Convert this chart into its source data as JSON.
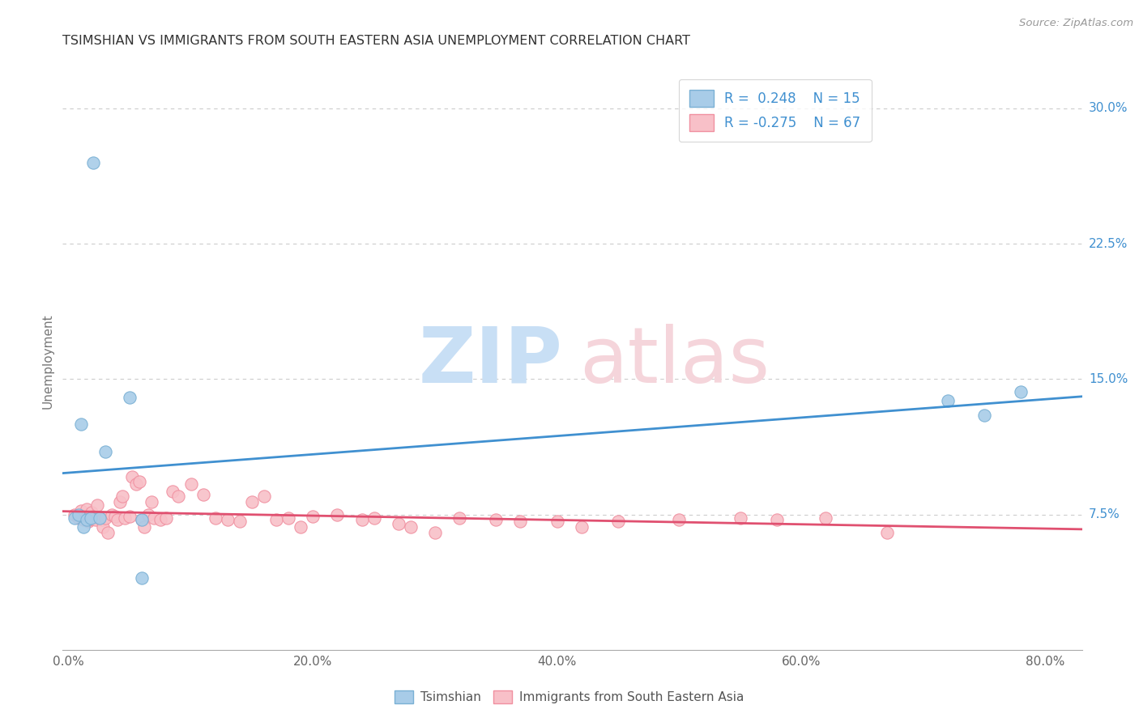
{
  "title": "TSIMSHIAN VS IMMIGRANTS FROM SOUTH EASTERN ASIA UNEMPLOYMENT CORRELATION CHART",
  "source": "Source: ZipAtlas.com",
  "xlabel_ticks": [
    "0.0%",
    "20.0%",
    "40.0%",
    "60.0%",
    "80.0%"
  ],
  "xlabel_vals": [
    0.0,
    0.2,
    0.4,
    0.6,
    0.8
  ],
  "ylabel_ticks": [
    "7.5%",
    "15.0%",
    "22.5%",
    "30.0%"
  ],
  "ylabel_vals": [
    0.075,
    0.15,
    0.225,
    0.3
  ],
  "ylim": [
    0.0,
    0.32
  ],
  "xlim": [
    -0.005,
    0.83
  ],
  "ylabel_label": "Unemployment",
  "blue_R": 0.248,
  "blue_N": 15,
  "pink_R": -0.275,
  "pink_N": 67,
  "blue_scatter_color": "#a8cce8",
  "blue_edge_color": "#7ab0d4",
  "pink_scatter_color": "#f8c0c8",
  "pink_edge_color": "#f090a0",
  "trend_blue": "#4090d0",
  "trend_pink": "#e05070",
  "legend_text_color": "#4090d0",
  "grid_color": "#cccccc",
  "bg_color": "#ffffff",
  "marker_size": 11,
  "blue_x": [
    0.005,
    0.008,
    0.01,
    0.012,
    0.015,
    0.018,
    0.02,
    0.025,
    0.03,
    0.05,
    0.06,
    0.72,
    0.75,
    0.78,
    0.06
  ],
  "blue_y": [
    0.073,
    0.075,
    0.125,
    0.068,
    0.072,
    0.073,
    0.27,
    0.073,
    0.11,
    0.14,
    0.072,
    0.138,
    0.13,
    0.143,
    0.04
  ],
  "pink_x": [
    0.005,
    0.008,
    0.01,
    0.012,
    0.013,
    0.014,
    0.015,
    0.016,
    0.017,
    0.018,
    0.019,
    0.02,
    0.021,
    0.022,
    0.023,
    0.025,
    0.027,
    0.028,
    0.03,
    0.032,
    0.035,
    0.038,
    0.04,
    0.042,
    0.044,
    0.046,
    0.05,
    0.052,
    0.055,
    0.058,
    0.06,
    0.062,
    0.065,
    0.068,
    0.07,
    0.075,
    0.08,
    0.085,
    0.09,
    0.1,
    0.11,
    0.12,
    0.13,
    0.14,
    0.15,
    0.16,
    0.17,
    0.18,
    0.19,
    0.2,
    0.22,
    0.24,
    0.25,
    0.27,
    0.28,
    0.3,
    0.32,
    0.35,
    0.37,
    0.4,
    0.42,
    0.45,
    0.5,
    0.55,
    0.58,
    0.62,
    0.67
  ],
  "pink_y": [
    0.075,
    0.073,
    0.077,
    0.072,
    0.074,
    0.073,
    0.078,
    0.071,
    0.072,
    0.073,
    0.076,
    0.074,
    0.073,
    0.072,
    0.08,
    0.073,
    0.072,
    0.068,
    0.073,
    0.065,
    0.075,
    0.074,
    0.072,
    0.082,
    0.085,
    0.073,
    0.074,
    0.096,
    0.092,
    0.093,
    0.072,
    0.068,
    0.075,
    0.082,
    0.073,
    0.072,
    0.073,
    0.088,
    0.085,
    0.092,
    0.086,
    0.073,
    0.072,
    0.071,
    0.082,
    0.085,
    0.072,
    0.073,
    0.068,
    0.074,
    0.075,
    0.072,
    0.073,
    0.07,
    0.068,
    0.065,
    0.073,
    0.072,
    0.071,
    0.071,
    0.068,
    0.071,
    0.072,
    0.073,
    0.072,
    0.073,
    0.065
  ]
}
